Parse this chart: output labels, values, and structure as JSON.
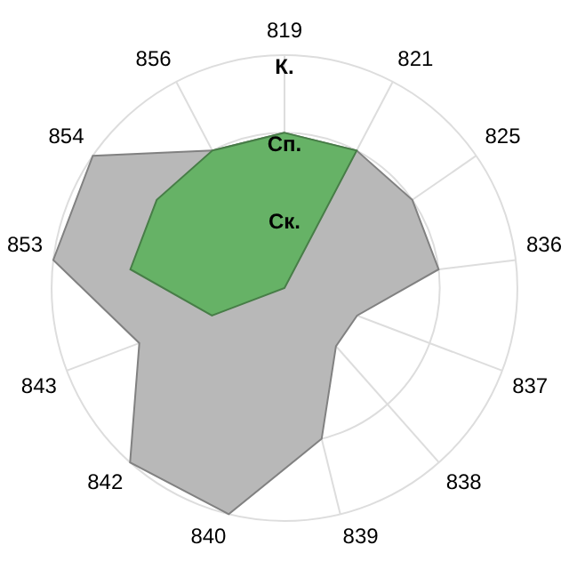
{
  "chart_data": {
    "type": "radar",
    "categories": [
      "819",
      "821",
      "825",
      "836",
      "837",
      "838",
      "839",
      "840",
      "842",
      "843",
      "853",
      "854",
      "856"
    ],
    "series": [
      {
        "color": "#b8b8b8",
        "values": [
          2,
          2,
          2,
          2,
          1,
          1,
          2,
          3,
          3,
          2,
          3,
          3,
          2
        ]
      },
      {
        "color": "#66b266",
        "values": [
          2,
          2,
          0,
          0,
          0,
          0,
          0,
          0,
          0,
          1,
          2,
          2,
          2
        ]
      }
    ],
    "ylim": [
      0,
      3
    ],
    "yticks": [
      {
        "value": 1,
        "label": "Ск."
      },
      {
        "value": 2,
        "label": "Сп."
      },
      {
        "value": 3,
        "label": "К."
      }
    ],
    "grid": true,
    "legend": false,
    "marker": "none"
  }
}
